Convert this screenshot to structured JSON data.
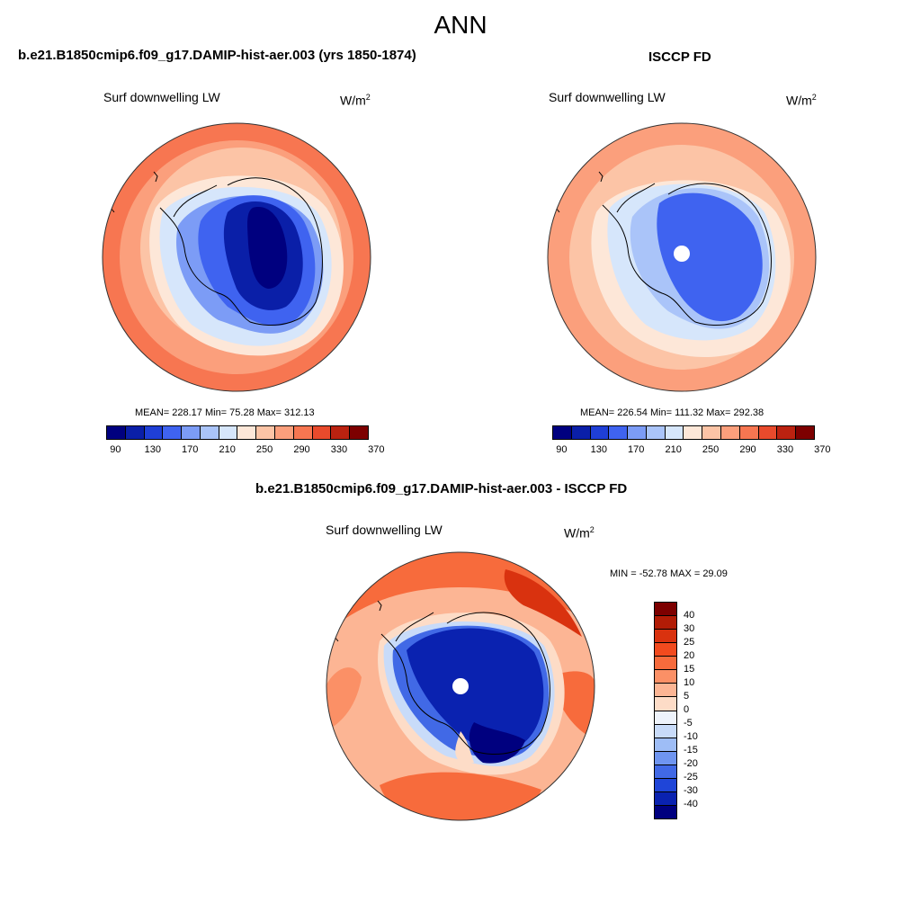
{
  "main_title": "ANN",
  "panels": [
    {
      "title": "b.e21.B1850cmip6.f09_g17.DAMIP-hist-aer.003 (yrs 1850-1874)",
      "variable": "Surf downwelling LW",
      "units": "W/m",
      "units_sup": "2",
      "stats": "MEAN= 228.17  Min=  75.28  Max= 312.13",
      "colorbar_ticks": [
        "90",
        "130",
        "170",
        "210",
        "250",
        "290",
        "330",
        "370"
      ],
      "colors": [
        "#00007f",
        "#0a1fa8",
        "#1f3fd6",
        "#3f63f0",
        "#7c9cf6",
        "#aac4f9",
        "#d6e6fb",
        "#fde7d8",
        "#fcc4a6",
        "#fb9f7c",
        "#f77651",
        "#e84a2c",
        "#bb2210",
        "#7d0000"
      ]
    },
    {
      "title": "ISCCP FD",
      "variable": "Surf downwelling LW",
      "units": "W/m",
      "units_sup": "2",
      "stats": "MEAN= 226.54  Min= 111.32  Max= 292.38",
      "colorbar_ticks": [
        "90",
        "130",
        "170",
        "210",
        "250",
        "290",
        "330",
        "370"
      ],
      "colors": [
        "#00007f",
        "#0a1fa8",
        "#1f3fd6",
        "#3f63f0",
        "#7c9cf6",
        "#aac4f9",
        "#d6e6fb",
        "#fde7d8",
        "#fcc4a6",
        "#fb9f7c",
        "#f77651",
        "#e84a2c",
        "#bb2210",
        "#7d0000"
      ]
    },
    {
      "title": "b.e21.B1850cmip6.f09_g17.DAMIP-hist-aer.003 - ISCCP FD",
      "variable": "Surf downwelling LW",
      "units": "W/m",
      "units_sup": "2",
      "stats": "MIN = -52.78 MAX =  29.09",
      "colorbar_ticks": [
        "40",
        "30",
        "25",
        "20",
        "15",
        "10",
        "5",
        "0",
        "-5",
        "-10",
        "-15",
        "-20",
        "-25",
        "-30",
        "-40"
      ],
      "colors": [
        "#7d0000",
        "#b21c06",
        "#d9320f",
        "#f24a1e",
        "#f76b3c",
        "#fb9066",
        "#fcb594",
        "#fddcc7",
        "#eef3fb",
        "#c8dbf9",
        "#9ebdf6",
        "#6f95f0",
        "#4169e6",
        "#1f45d8",
        "#0a22b0",
        "#00007f"
      ]
    }
  ]
}
